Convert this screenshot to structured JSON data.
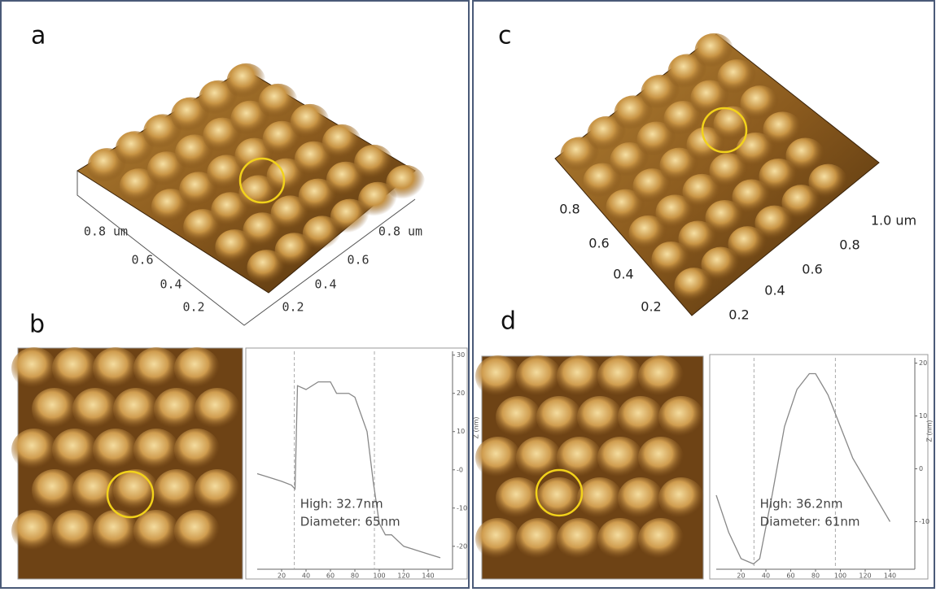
{
  "figure": {
    "a": {
      "label": "a",
      "axis_labels": [
        "0.8 um",
        "0.6",
        "0.4",
        "0.2",
        "0.8 um",
        "0.6",
        "0.4",
        "0.2"
      ]
    },
    "b": {
      "label": "b"
    },
    "c": {
      "label": "c",
      "axis_labels": [
        "0.8",
        "0.6",
        "0.4",
        "0.2",
        "1.0 um",
        "0.8",
        "0.6",
        "0.4",
        "0.2"
      ]
    },
    "d": {
      "label": "d"
    }
  },
  "chart_data": [
    {
      "type": "line",
      "y_label": "Z (nm)",
      "annotations": [
        "High: 32.7nm",
        "Diameter: 65nm"
      ],
      "x": [
        0,
        10,
        20,
        28,
        31,
        33,
        40,
        50,
        60,
        65,
        75,
        80,
        90,
        95,
        100,
        105,
        110,
        120,
        130,
        140,
        150
      ],
      "series": [
        {
          "color": "#888888",
          "values": [
            -1,
            -2,
            -3,
            -4,
            -5,
            22,
            21,
            23,
            23,
            20,
            20,
            19,
            10,
            -3,
            -14,
            -17,
            -17,
            -20,
            -21,
            -22,
            -23
          ]
        }
      ],
      "xlim": [
        0,
        160
      ],
      "ylim": [
        -26,
        31
      ],
      "xticks": [
        20,
        40,
        60,
        80,
        100,
        120,
        140
      ],
      "yticks": [
        30,
        20,
        10,
        {
          "value": 0,
          "label": "-0"
        },
        -10,
        -20
      ]
    },
    {
      "type": "line",
      "y_label": "Z (nm)",
      "annotations": [
        "High: 36.2nm",
        "Diameter: 61nm"
      ],
      "x": [
        0,
        10,
        20,
        30,
        35,
        45,
        55,
        65,
        75,
        80,
        90,
        100,
        110,
        120,
        130,
        140
      ],
      "series": [
        {
          "color": "#888888",
          "values": [
            -5,
            -12,
            -17,
            -18,
            -17,
            -5,
            8,
            15,
            18,
            18,
            14,
            8,
            2,
            -2,
            -6,
            -10
          ]
        }
      ],
      "xlim": [
        0,
        160
      ],
      "ylim": [
        -19,
        21
      ],
      "xticks": [
        20,
        40,
        60,
        80,
        100,
        120,
        140
      ],
      "yticks": [
        20,
        10,
        0,
        -10
      ]
    }
  ]
}
